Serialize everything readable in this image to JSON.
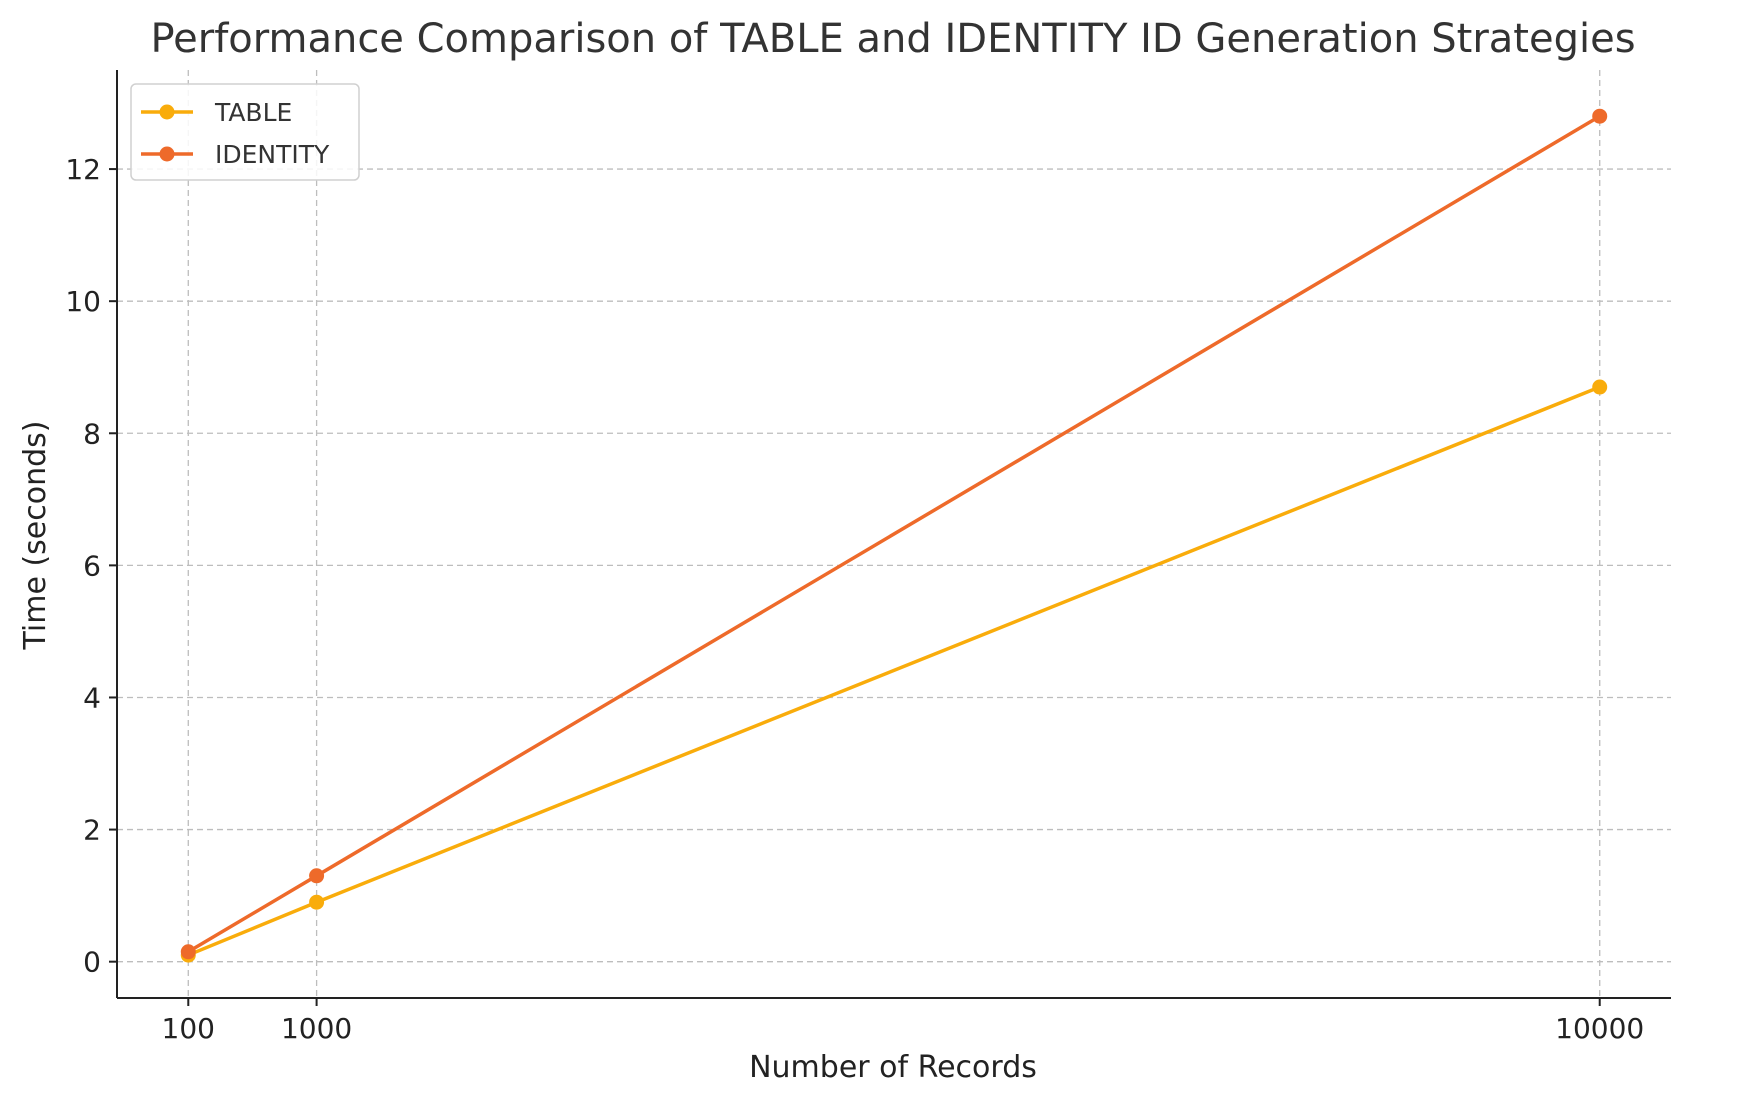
{
  "chart_data": {
    "type": "line",
    "title": "Performance Comparison of TABLE and IDENTITY ID Generation Strategies",
    "xlabel": "Number of Records",
    "ylabel": "Time (seconds)",
    "x": [
      100,
      1000,
      10000
    ],
    "x_ticks": [
      "100",
      "1000",
      "10000"
    ],
    "xlim": [
      -400,
      10500
    ],
    "ylim": [
      -0.55,
      13.5
    ],
    "y_ticks": [
      "0",
      "2",
      "4",
      "6",
      "8",
      "10",
      "12"
    ],
    "grid": true,
    "legend_position": "top-left",
    "series": [
      {
        "name": "TABLE",
        "color": "#F9AC0B",
        "values": [
          0.1,
          0.9,
          8.7
        ]
      },
      {
        "name": "IDENTITY",
        "color": "#EE6A2A",
        "values": [
          0.15,
          1.3,
          12.8
        ]
      }
    ]
  }
}
